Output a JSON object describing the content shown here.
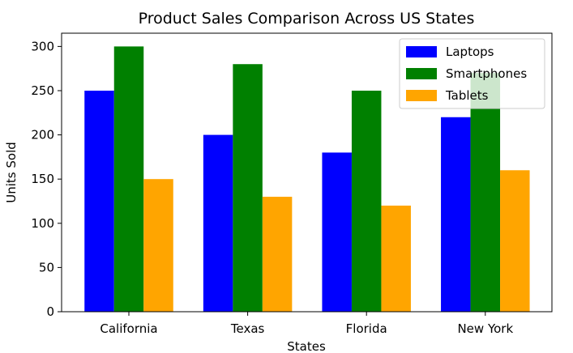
{
  "chart_data": {
    "type": "bar",
    "title": "Product Sales Comparison Across US States",
    "xlabel": "States",
    "ylabel": "Units Sold",
    "categories": [
      "California",
      "Texas",
      "Florida",
      "New York"
    ],
    "series": [
      {
        "name": "Laptops",
        "values": [
          250,
          200,
          180,
          220
        ],
        "color": "#0000ff"
      },
      {
        "name": "Smartphones",
        "values": [
          300,
          280,
          250,
          270
        ],
        "color": "#008000"
      },
      {
        "name": "Tablets",
        "values": [
          150,
          130,
          120,
          160
        ],
        "color": "#ffa500"
      }
    ],
    "ylim": [
      0,
      315
    ],
    "yticks": [
      0,
      50,
      100,
      150,
      200,
      250,
      300
    ],
    "grid": false,
    "legend_position": "top-right"
  }
}
